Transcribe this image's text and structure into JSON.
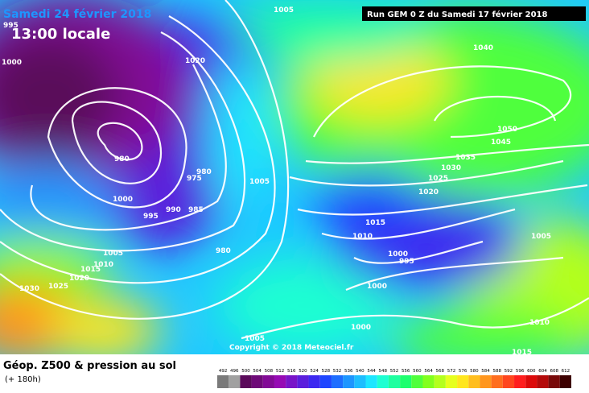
{
  "header": {
    "date": "Samedi 24 février 2018",
    "time": "13:00 locale",
    "run": "Run GEM 0 Z du Samedi 17 février 2018"
  },
  "footer": {
    "title": "Géop. Z500 & pression au sol",
    "lead": "(+ 180h)"
  },
  "copyright": "Copyright © 2018 Meteociel.fr",
  "isobar_labels": [
    "995",
    "1005",
    "1000",
    "1020",
    "1040",
    "980",
    "975",
    "980",
    "1005",
    "1050",
    "1045",
    "1035",
    "1030",
    "1025",
    "1020",
    "1000",
    "995",
    "990",
    "985",
    "1015",
    "1010",
    "1005",
    "980",
    "1005",
    "1000",
    "995",
    "1010",
    "1015",
    "1020",
    "1025",
    "1030",
    "1000",
    "1000",
    "1005",
    "1010",
    "1015"
  ],
  "legend": {
    "values": [
      492,
      496,
      500,
      504,
      508,
      512,
      516,
      520,
      524,
      528,
      532,
      536,
      540,
      544,
      548,
      552,
      556,
      560,
      564,
      568,
      572,
      576,
      580,
      584,
      588,
      592,
      596,
      600,
      604,
      608,
      612
    ],
    "colors": [
      "#7a7a7a",
      "#a0a0a0",
      "#5a0a5a",
      "#6e0a78",
      "#820a96",
      "#960ab4",
      "#7814c8",
      "#5a1edc",
      "#3c28f0",
      "#1e46ff",
      "#1e6eff",
      "#1e96ff",
      "#1ebeff",
      "#1ee6ff",
      "#1effd2",
      "#1effa0",
      "#1eff6e",
      "#50ff3c",
      "#82ff1e",
      "#b4ff1e",
      "#e6ff1e",
      "#ffe61e",
      "#ffbe1e",
      "#ff961e",
      "#ff6e1e",
      "#ff461e",
      "#ff1e1e",
      "#dc0a0a",
      "#b40a0a",
      "#780a0a",
      "#3c0000"
    ]
  }
}
